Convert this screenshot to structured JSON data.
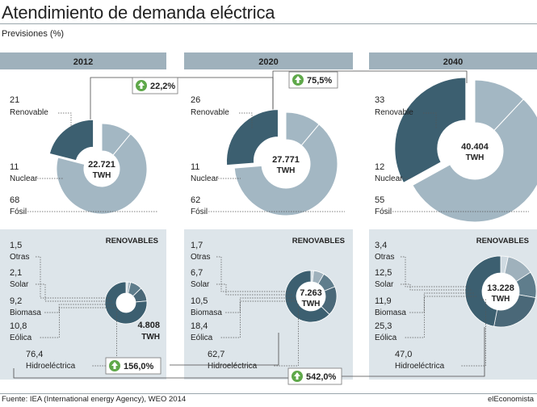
{
  "title": "Atendimiento de demanda eléctrica",
  "subtitle": "Previsiones (%)",
  "source": "Fuente: IEA (International energy Agency), WEO 2014",
  "brand": "elEconomista",
  "colors": {
    "dark": "#3c5f70",
    "light": "#a3b7c3",
    "header": "#9fb1bc",
    "panel": "#dde5ea"
  },
  "growth_top": [
    "22,2%",
    "75,5%"
  ],
  "growth_bottom": [
    "156,0%",
    "542,0%"
  ],
  "chart_data": [
    {
      "type": "pie",
      "title": "2012",
      "center_label": [
        "22.721",
        "TWH"
      ],
      "slices": [
        {
          "label": "Renovable",
          "value": 21
        },
        {
          "label": "Nuclear",
          "value": 11
        },
        {
          "label": "Fósil",
          "value": 68
        }
      ]
    },
    {
      "type": "pie",
      "title": "2020",
      "center_label": [
        "27.771",
        "TWH"
      ],
      "slices": [
        {
          "label": "Renovable",
          "value": 26
        },
        {
          "label": "Nuclear",
          "value": 11
        },
        {
          "label": "Fósil",
          "value": 62
        }
      ]
    },
    {
      "type": "pie",
      "title": "2040",
      "center_label": [
        "40.404",
        "TWH"
      ],
      "slices": [
        {
          "label": "Renovable",
          "value": 33
        },
        {
          "label": "Nuclear",
          "value": 12
        },
        {
          "label": "Fósil",
          "value": 55
        }
      ]
    },
    {
      "type": "pie",
      "title": "RENOVABLES",
      "year": "2012",
      "center_label": [
        "4.808",
        "TWH"
      ],
      "slices": [
        {
          "label": "Otras",
          "value": "1,5"
        },
        {
          "label": "Solar",
          "value": "2,1"
        },
        {
          "label": "Biomasa",
          "value": "9,2"
        },
        {
          "label": "Eólica",
          "value": "10,8"
        },
        {
          "label": "Hidroeléctrica",
          "value": "76,4"
        }
      ]
    },
    {
      "type": "pie",
      "title": "RENOVABLES",
      "year": "2020",
      "center_label": [
        "7.263",
        "TWH"
      ],
      "slices": [
        {
          "label": "Otras",
          "value": "1,7"
        },
        {
          "label": "Solar",
          "value": "6,7"
        },
        {
          "label": "Biomasa",
          "value": "10,5"
        },
        {
          "label": "Eólica",
          "value": "18,4"
        },
        {
          "label": "Hidroeléctrica",
          "value": "62,7"
        }
      ]
    },
    {
      "type": "pie",
      "title": "RENOVABLES",
      "year": "2040",
      "center_label": [
        "13.228",
        "TWH"
      ],
      "slices": [
        {
          "label": "Otras",
          "value": "3,4"
        },
        {
          "label": "Solar",
          "value": "12,5"
        },
        {
          "label": "Biomasa",
          "value": "11,9"
        },
        {
          "label": "Eólica",
          "value": "25,3"
        },
        {
          "label": "Hidroeléctrica",
          "value": "47,0"
        }
      ]
    }
  ]
}
